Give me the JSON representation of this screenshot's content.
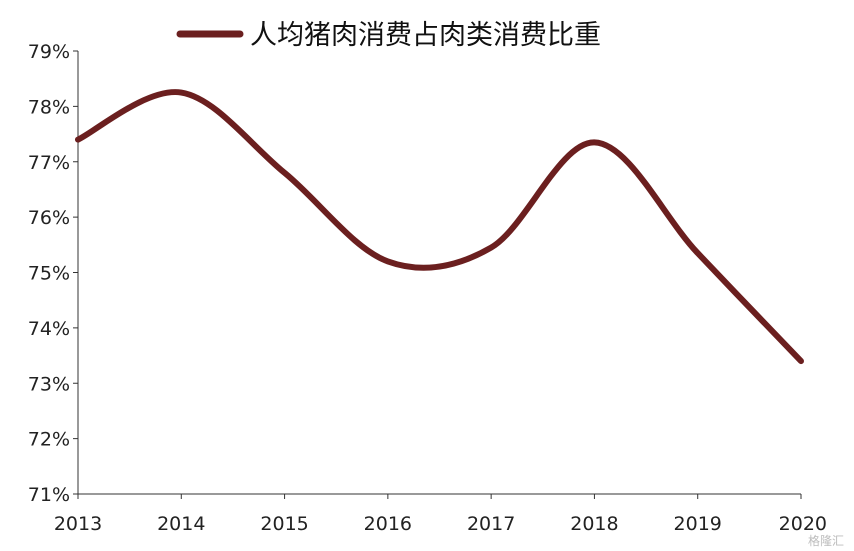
{
  "chart_data": {
    "type": "line",
    "x": [
      "2013",
      "2014",
      "2015",
      "2016",
      "2017",
      "2018",
      "2019",
      "2020"
    ],
    "series": [
      {
        "name": "人均猪肉消费占肉类消费比重",
        "values": [
          77.4,
          78.25,
          76.8,
          75.2,
          75.45,
          77.35,
          75.35,
          73.4
        ],
        "color": "#6b1f1f"
      }
    ],
    "yticks": [
      "71%",
      "72%",
      "73%",
      "74%",
      "75%",
      "76%",
      "77%",
      "78%",
      "79%"
    ],
    "ylim": [
      71,
      79
    ],
    "grid": false,
    "legend_position": "top-center",
    "watermark": "格隆汇"
  }
}
